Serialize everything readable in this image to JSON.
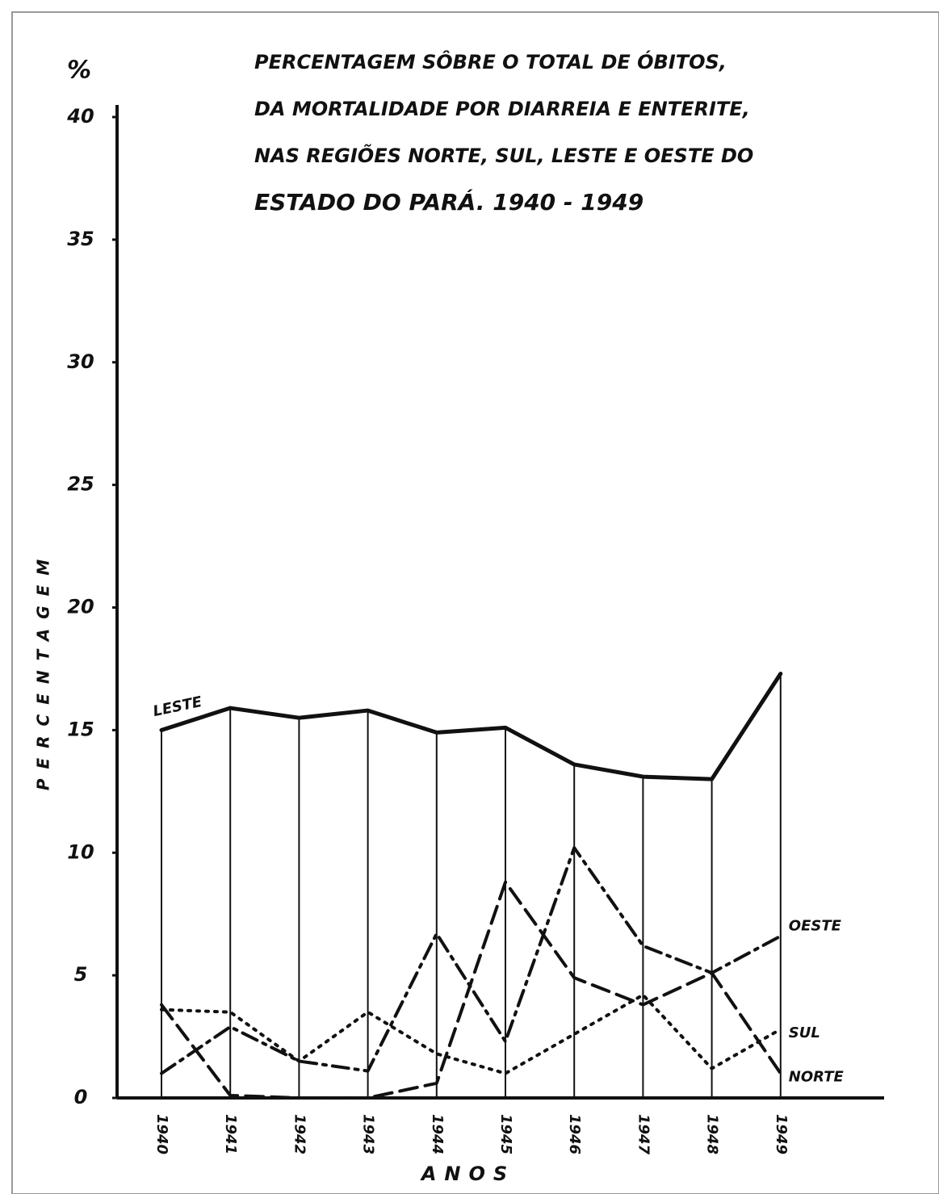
{
  "chart_data": {
    "type": "line",
    "title": [
      "PERCENTAGEM SÔBRE O TOTAL DE ÓBITOS,",
      "DA MORTALIDADE POR DIARREIA E ENTERITE,",
      "NAS REGIÕES NORTE, SUL, LESTE E OESTE DO",
      "ESTADO DO PARÁ.   1940 - 1949"
    ],
    "y_unit": "%",
    "ylabel": "PERCENTAGEM",
    "xlabel": "ANOS",
    "categories": [
      "1940",
      "1941",
      "1942",
      "1943",
      "1944",
      "1945",
      "1946",
      "1947",
      "1948",
      "1949"
    ],
    "series": [
      {
        "name": "LESTE",
        "color": "#111111",
        "dash": "solid",
        "values": [
          15.0,
          15.9,
          15.5,
          15.8,
          14.9,
          15.1,
          13.6,
          13.1,
          13.0,
          17.3
        ]
      },
      {
        "name": "OESTE",
        "color": "#111111",
        "dash": "dashdot",
        "values": [
          1.0,
          2.9,
          1.5,
          1.1,
          6.7,
          2.3,
          10.2,
          6.2,
          5.1,
          6.6
        ]
      },
      {
        "name": "SUL",
        "color": "#111111",
        "dash": "dotted",
        "values": [
          3.6,
          3.5,
          1.5,
          3.5,
          1.8,
          1.0,
          2.6,
          4.2,
          1.2,
          2.8
        ]
      },
      {
        "name": "NORTE",
        "color": "#111111",
        "dash": "dashed",
        "values": [
          3.8,
          0.1,
          0,
          0,
          0.6,
          8.8,
          4.9,
          3.8,
          5.1,
          1.0
        ]
      }
    ],
    "ylim": [
      0,
      40
    ],
    "yticks": [
      0,
      5,
      10,
      15,
      20,
      25,
      30,
      35,
      40
    ]
  }
}
